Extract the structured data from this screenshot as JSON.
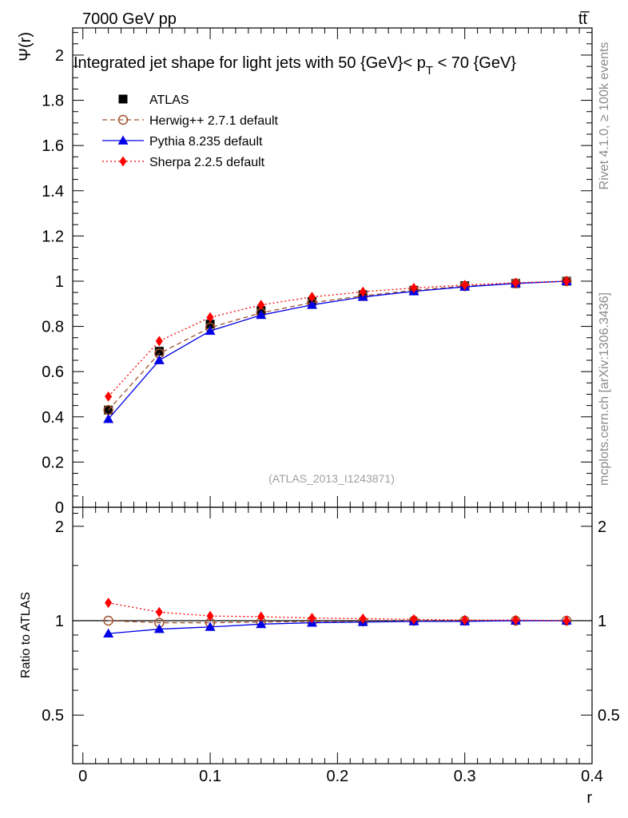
{
  "header": {
    "energy_label": "7000 GeV pp",
    "process_label": "tt̅"
  },
  "side_labels": {
    "rivet": "Rivet 4.1.0, ≥ 100k events",
    "mcplots": "mcplots.cern.ch [arXiv:1306.3436]"
  },
  "chart_data": [
    {
      "type": "line",
      "title": "Integrated jet shape for light jets with 50 {GeV}< p_T < 70 {GeV}",
      "title_parts": {
        "main": "Integrated jet shape for light jets with 50 {GeV}< p",
        "sub": "T",
        "tail": " < 70 {GeV}"
      },
      "ylabel": "Ψ(r)",
      "xlim": [
        -0.008,
        0.4
      ],
      "ylim": [
        0,
        2.12
      ],
      "yticks": [
        0,
        0.2,
        0.4,
        0.6,
        0.8,
        1,
        1.2,
        1.4,
        1.6,
        1.8,
        2
      ],
      "ytick_labels": [
        "0",
        "0.2",
        "0.4",
        "0.6",
        "0.8",
        "1",
        "1.2",
        "1.4",
        "1.6",
        "1.8",
        "2"
      ],
      "watermark": "(ATLAS_2013_I1243871)",
      "x": [
        0.02,
        0.06,
        0.1,
        0.14,
        0.18,
        0.22,
        0.26,
        0.3,
        0.34,
        0.38
      ],
      "series": [
        {
          "name": "ATLAS",
          "legend": "ATLAS",
          "color": "#000000",
          "marker": "square",
          "line": "none",
          "values": [
            0.43,
            0.69,
            0.81,
            0.87,
            0.91,
            0.94,
            0.96,
            0.98,
            0.99,
            1.0
          ]
        },
        {
          "name": "Herwig",
          "legend": "Herwig++ 2.7.1 default",
          "color": "#a0522d",
          "marker": "open-circle",
          "line": "dashed",
          "values": [
            0.43,
            0.68,
            0.795,
            0.86,
            0.905,
            0.935,
            0.96,
            0.978,
            0.99,
            1.0
          ]
        },
        {
          "name": "Pythia",
          "legend": "Pythia 8.235 default",
          "color": "#0000e6",
          "marker": "triangle",
          "line": "solid",
          "values": [
            0.39,
            0.65,
            0.78,
            0.85,
            0.895,
            0.93,
            0.955,
            0.975,
            0.99,
            1.0
          ]
        },
        {
          "name": "Sherpa",
          "legend": "Sherpa 2.2.5 default",
          "color": "#ff0000",
          "marker": "diamond",
          "line": "dotted",
          "values": [
            0.49,
            0.735,
            0.84,
            0.895,
            0.93,
            0.953,
            0.97,
            0.983,
            0.993,
            1.0
          ]
        }
      ]
    },
    {
      "type": "line",
      "title": "",
      "ylabel": "Ratio to ATLAS",
      "xlabel": "r",
      "xlim": [
        -0.008,
        0.4
      ],
      "ylim": [
        0.35,
        2.3
      ],
      "yticks": [
        0.5,
        1,
        2
      ],
      "ytick_labels": [
        "0.5",
        "1",
        "2"
      ],
      "xticks": [
        0,
        0.1,
        0.2,
        0.3,
        0.4
      ],
      "xtick_labels": [
        "0",
        "0.1",
        "0.2",
        "0.3",
        "0.4"
      ],
      "x": [
        0.02,
        0.06,
        0.1,
        0.14,
        0.18,
        0.22,
        0.26,
        0.3,
        0.34,
        0.38
      ],
      "series": [
        {
          "name": "Herwig",
          "color": "#a0522d",
          "marker": "open-circle",
          "line": "dashed",
          "values": [
            1.0,
            0.985,
            0.985,
            0.99,
            0.995,
            0.995,
            1.0,
            1.0,
            1.0,
            1.0
          ]
        },
        {
          "name": "Pythia",
          "color": "#0000e6",
          "marker": "triangle",
          "line": "solid",
          "values": [
            0.91,
            0.94,
            0.955,
            0.975,
            0.985,
            0.99,
            0.995,
            0.995,
            1.0,
            1.0
          ]
        },
        {
          "name": "Sherpa",
          "color": "#ff0000",
          "marker": "diamond",
          "line": "dotted",
          "values": [
            1.14,
            1.065,
            1.035,
            1.03,
            1.02,
            1.015,
            1.01,
            1.005,
            1.005,
            1.0
          ]
        }
      ]
    }
  ]
}
